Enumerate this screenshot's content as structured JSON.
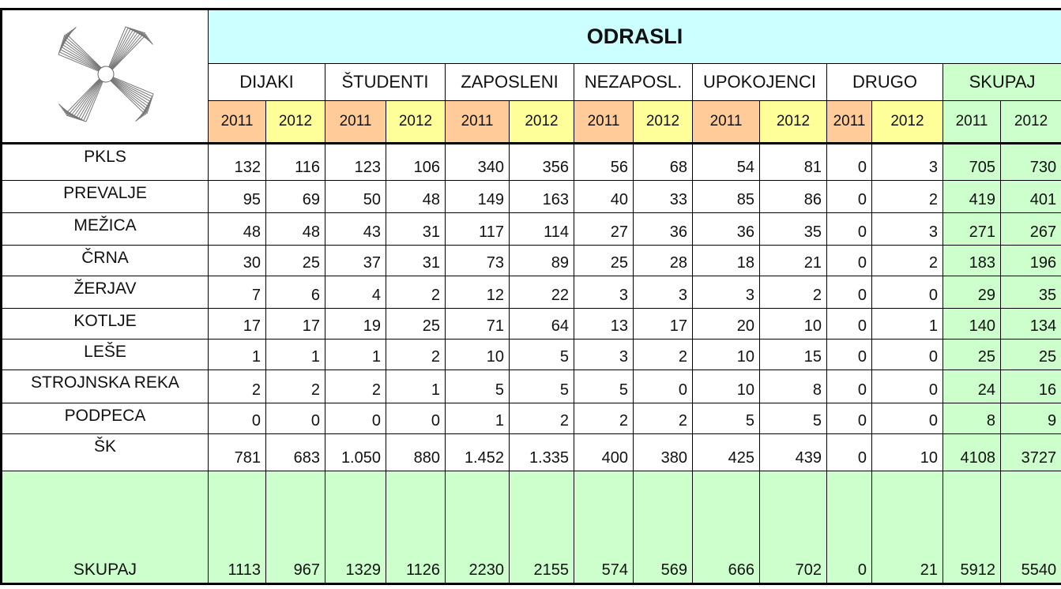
{
  "header": {
    "title": "ODRASLI",
    "groups": [
      "DIJAKI",
      "ŠTUDENTI",
      "ZAPOSLENI",
      "NEZAPOSL.",
      "UPOKOJENCI",
      "DRUGO",
      "SKUPAJ"
    ],
    "years": [
      "2011",
      "2012",
      "2011",
      "2012",
      "2011",
      "2012",
      "2011",
      "2012",
      "2011",
      "2012",
      "2011",
      "2012",
      "2011",
      "2012"
    ]
  },
  "rows": [
    {
      "label": "PKLS",
      "values": [
        "132",
        "116",
        "123",
        "106",
        "340",
        "356",
        "56",
        "68",
        "54",
        "81",
        "0",
        "3",
        "705",
        "730"
      ]
    },
    {
      "label": "PREVALJE",
      "values": [
        "95",
        "69",
        "50",
        "48",
        "149",
        "163",
        "40",
        "33",
        "85",
        "86",
        "0",
        "2",
        "419",
        "401"
      ]
    },
    {
      "label": "MEŽICA",
      "values": [
        "48",
        "48",
        "43",
        "31",
        "117",
        "114",
        "27",
        "36",
        "36",
        "35",
        "0",
        "3",
        "271",
        "267"
      ]
    },
    {
      "label": "ČRNA",
      "values": [
        "30",
        "25",
        "37",
        "31",
        "73",
        "89",
        "25",
        "28",
        "18",
        "21",
        "0",
        "2",
        "183",
        "196"
      ]
    },
    {
      "label": "ŽERJAV",
      "values": [
        "7",
        "6",
        "4",
        "2",
        "12",
        "22",
        "3",
        "3",
        "3",
        "2",
        "0",
        "0",
        "29",
        "35"
      ]
    },
    {
      "label": "KOTLJE",
      "values": [
        "17",
        "17",
        "19",
        "25",
        "71",
        "64",
        "13",
        "17",
        "20",
        "10",
        "0",
        "1",
        "140",
        "134"
      ]
    },
    {
      "label": "LEŠE",
      "values": [
        "1",
        "1",
        "1",
        "2",
        "10",
        "5",
        "3",
        "2",
        "10",
        "15",
        "0",
        "0",
        "25",
        "25"
      ]
    },
    {
      "label": "STROJNSKA REKA",
      "values": [
        "2",
        "2",
        "2",
        "1",
        "5",
        "5",
        "5",
        "0",
        "10",
        "8",
        "0",
        "0",
        "24",
        "16"
      ]
    },
    {
      "label": "PODPECA",
      "values": [
        "0",
        "0",
        "0",
        "0",
        "1",
        "2",
        "2",
        "2",
        "5",
        "5",
        "0",
        "0",
        "8",
        "9"
      ]
    },
    {
      "label": "ŠK",
      "values": [
        "781",
        "683",
        "1.050",
        "880",
        "1.452",
        "1.335",
        "400",
        "380",
        "425",
        "439",
        "0",
        "10",
        "4108",
        "3727"
      ]
    },
    {
      "label": "SKUPAJ",
      "values": [
        "1113",
        "967",
        "1329",
        "1126",
        "2230",
        "2155",
        "574",
        "569",
        "666",
        "702",
        "0",
        "21",
        "5912",
        "5540"
      ]
    }
  ]
}
